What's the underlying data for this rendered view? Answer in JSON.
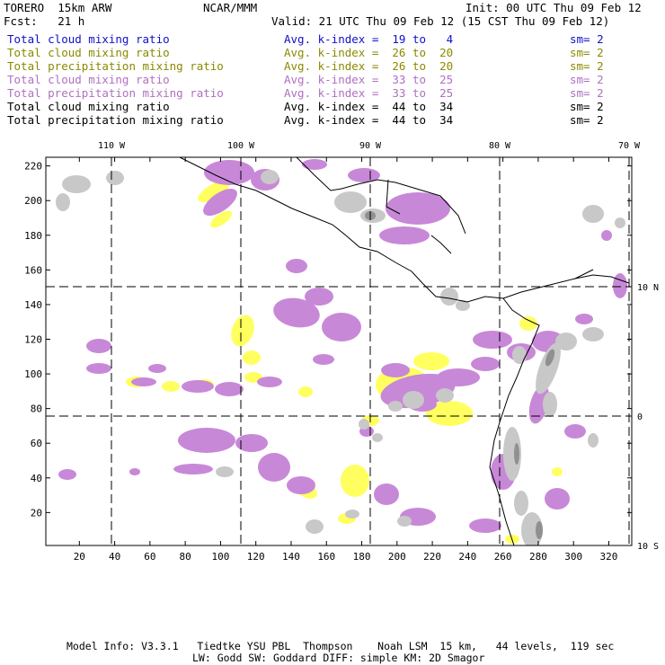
{
  "header": {
    "model": "TORERO  15km ARW",
    "center": "NCAR/MMM",
    "init": "Init: 00 UTC Thu 09 Feb 12",
    "fcst": "Fcst:   21 h",
    "valid": "Valid: 21 UTC Thu 09 Feb 12 (15 CST Thu 09 Feb 12)"
  },
  "legend_rows": [
    {
      "field": "Total cloud mixing ratio",
      "index": "Avg. k-index =  19 to   4",
      "sm": "sm= 2",
      "color": "#1010c8"
    },
    {
      "field": "Total cloud mixing ratio",
      "index": "Avg. k-index =  26 to  20",
      "sm": "sm= 2",
      "color": "#8a8a00"
    },
    {
      "field": "Total precipitation mixing ratio",
      "index": "Avg. k-index =  26 to  20",
      "sm": "sm= 2",
      "color": "#8a8a00"
    },
    {
      "field": "Total cloud mixing ratio",
      "index": "Avg. k-index =  33 to  25",
      "sm": "sm= 2",
      "color": "#b070c0"
    },
    {
      "field": "Total precipitation mixing ratio",
      "index": "Avg. k-index =  33 to  25",
      "sm": "sm= 2",
      "color": "#b070c0"
    },
    {
      "field": "Total cloud mixing ratio",
      "index": "Avg. k-index =  44 to  34",
      "sm": "sm= 2",
      "color": "#000000"
    },
    {
      "field": "Total precipitation mixing ratio",
      "index": "Avg. k-index =  44 to  34",
      "sm": "sm= 2",
      "color": "#000000"
    }
  ],
  "map": {
    "longitude_labels": [
      "110 W",
      "100 W",
      "90 W",
      "80 W",
      "70 W"
    ],
    "latitude_labels": [
      "10 N",
      "0",
      "10 S"
    ],
    "x_grid_ticks": [
      "20",
      "40",
      "60",
      "80",
      "100",
      "120",
      "140",
      "160",
      "180",
      "200",
      "220",
      "240",
      "260",
      "280",
      "300",
      "320"
    ],
    "y_grid_ticks": [
      "220",
      "200",
      "180",
      "160",
      "140",
      "120",
      "100",
      "80",
      "60",
      "40",
      "20"
    ],
    "x_grid_range": [
      1,
      333
    ],
    "y_grid_range": [
      1,
      225
    ],
    "colors": {
      "cloud_low": "#c8c8c8",
      "cloud_mid": "#ffff60",
      "cloud_high": "#c888d8",
      "cloud_deep": "#909090",
      "outline": "#8030a0",
      "coast": "#000000"
    }
  },
  "footer": {
    "line1": "Model Info: V3.3.1   Tiedtke YSU PBL  Thompson    Noah LSM  15 km,   44 levels,  119 sec",
    "line2": "LW: Godd SW: Goddard DIFF: simple KM: 2D Smagor"
  }
}
